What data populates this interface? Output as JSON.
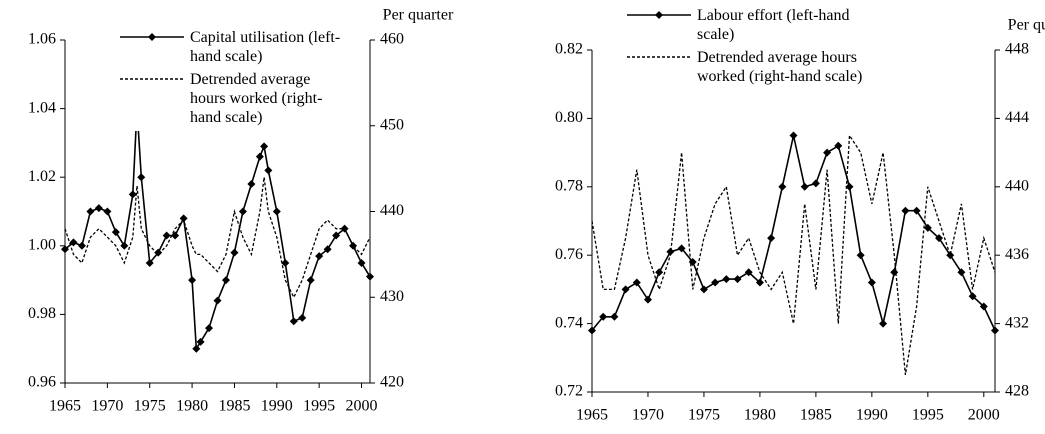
{
  "chart_data": [
    {
      "type": "line",
      "y2_label": "Per quarter",
      "x": [
        1965,
        1966,
        1967,
        1968,
        1969,
        1970,
        1971,
        1972,
        1973,
        1973.5,
        1974,
        1975,
        1976,
        1977,
        1978,
        1979,
        1980,
        1980.5,
        1981,
        1982,
        1983,
        1984,
        1985,
        1986,
        1987,
        1988,
        1988.5,
        1989,
        1990,
        1991,
        1992,
        1993,
        1994,
        1995,
        1996,
        1997,
        1998,
        1999,
        2000,
        2001
      ],
      "xlim": [
        1965,
        2001
      ],
      "xticks": [
        1965,
        1970,
        1975,
        1980,
        1985,
        1990,
        1995,
        2000
      ],
      "ylim": [
        0.96,
        1.06
      ],
      "yticks": [
        0.96,
        0.98,
        {
          "value": 1,
          "label": "1.00"
        },
        1.02,
        1.04,
        1.06
      ],
      "y2lim": [
        420,
        460
      ],
      "y2ticks": [
        420,
        430,
        440,
        450,
        460
      ],
      "series": [
        {
          "name": "Capital utilisation (left-hand scale)",
          "color": "#000000",
          "marker": "diamond",
          "dashed": false,
          "values": [
            0.999,
            1.001,
            1.0,
            1.01,
            1.011,
            1.01,
            1.004,
            1.0,
            1.015,
            1.04,
            1.02,
            0.995,
            0.998,
            1.003,
            1.003,
            1.008,
            0.99,
            0.97,
            0.972,
            0.976,
            0.984,
            0.99,
            0.998,
            1.01,
            1.018,
            1.026,
            1.029,
            1.022,
            1.01,
            0.995,
            0.978,
            0.979,
            0.99,
            0.997,
            0.999,
            1.003,
            1.005,
            1.0,
            0.995,
            0.991
          ]
        },
        {
          "name": "Detrended average hours worked (right-hand scale)",
          "color": "#000000",
          "marker": "none",
          "dashed": true,
          "axis": "y2",
          "values": [
            438,
            435,
            434,
            437,
            438,
            437,
            436,
            434,
            437,
            443,
            438,
            436,
            435,
            436,
            438,
            439,
            436,
            435,
            435,
            434,
            433,
            435,
            440,
            437,
            435,
            440,
            444,
            440,
            437,
            432,
            430,
            432,
            435,
            438,
            439,
            438,
            438,
            436,
            435,
            437
          ]
        }
      ],
      "legend": "top"
    },
    {
      "type": "line",
      "y2_label": "Per quarter",
      "x": [
        1965,
        1966,
        1967,
        1968,
        1969,
        1970,
        1971,
        1972,
        1973,
        1974,
        1975,
        1976,
        1977,
        1978,
        1979,
        1980,
        1981,
        1982,
        1983,
        1984,
        1985,
        1986,
        1987,
        1988,
        1989,
        1990,
        1991,
        1992,
        1993,
        1994,
        1995,
        1996,
        1997,
        1998,
        1999,
        2000,
        2001
      ],
      "xlim": [
        1965,
        2001
      ],
      "xticks": [
        1965,
        1970,
        1975,
        1980,
        1985,
        1990,
        1995,
        2000
      ],
      "ylim": [
        0.72,
        0.82
      ],
      "yticks": [
        0.72,
        0.74,
        0.76,
        0.78,
        {
          "value": 0.8,
          "label": "0.80"
        },
        0.82
      ],
      "y2lim": [
        428,
        448
      ],
      "y2ticks": [
        428,
        432,
        436,
        440,
        444,
        448
      ],
      "series": [
        {
          "name": "Labour effort (left-hand scale)",
          "color": "#000000",
          "marker": "diamond",
          "dashed": false,
          "values": [
            0.738,
            0.742,
            0.742,
            0.75,
            0.752,
            0.747,
            0.755,
            0.761,
            0.762,
            0.758,
            0.75,
            0.752,
            0.753,
            0.753,
            0.755,
            0.752,
            0.765,
            0.78,
            0.795,
            0.78,
            0.781,
            0.79,
            0.792,
            0.78,
            0.76,
            0.752,
            0.74,
            0.755,
            0.773,
            0.773,
            0.768,
            0.765,
            0.76,
            0.755,
            0.748,
            0.745,
            0.738
          ]
        },
        {
          "name": "Detrended average hours worked (right-hand scale)",
          "color": "#000000",
          "marker": "none",
          "dashed": true,
          "axis": "y2",
          "values": [
            438,
            434,
            434,
            437,
            441,
            436,
            434,
            436,
            442,
            434,
            437,
            439,
            440,
            436,
            437,
            435,
            434,
            435,
            432,
            439,
            434,
            441,
            432,
            443,
            442,
            439,
            442,
            436,
            429,
            433,
            440,
            438,
            436,
            439,
            434,
            437,
            435
          ]
        }
      ],
      "legend": "top"
    }
  ]
}
